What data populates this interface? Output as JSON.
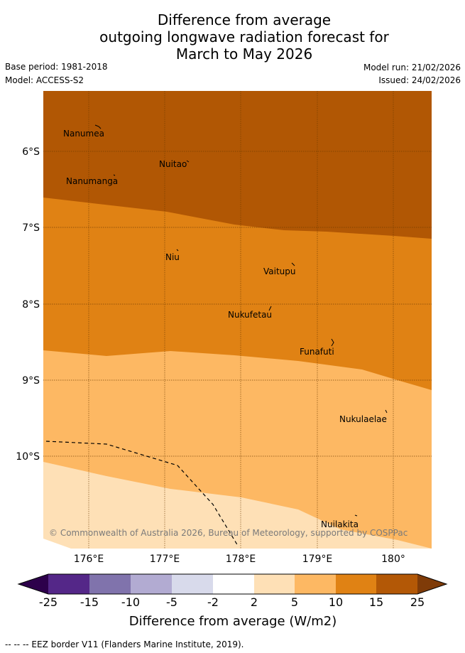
{
  "title": {
    "line1": "Difference from average",
    "line2": "outgoing longwave radiation forecast for",
    "line3": "March to May 2026"
  },
  "meta": {
    "base_period": "Base period: 1981-2018",
    "model": "Model: ACCESS-S2",
    "model_run": "Model run: 21/02/2026",
    "issued": "Issued: 24/02/2026"
  },
  "map": {
    "lat_labels": [
      "6°S",
      "7°S",
      "8°S",
      "9°S",
      "10°S"
    ],
    "lon_labels": [
      "176°E",
      "177°E",
      "178°E",
      "179°E",
      "180°"
    ],
    "places": [
      "Nanumea",
      "Nuitao",
      "Nanumanga",
      "Niu",
      "Vaitupu",
      "Nukufetau",
      "Funafuti",
      "Nukulaelae",
      "Nuilakita"
    ],
    "copyright": "© Commonwealth of Australia 2026, Bureau of Meteorology, supported by COSPPac",
    "colors": {
      "band_15_25": "#b15704",
      "band_10_15": "#e08214",
      "band_5_10": "#fdb863",
      "band_2_5": "#fee0b6"
    }
  },
  "legend": {
    "title": "Difference from average (W/m2)",
    "ticks": [
      "-25",
      "-15",
      "-10",
      "-5",
      "-2",
      "2",
      "5",
      "10",
      "15",
      "25"
    ],
    "colors": [
      "#542788",
      "#8073ac",
      "#b2abd2",
      "#d8daeb",
      "#ffffff",
      "#fee0b6",
      "#fdb863",
      "#e08214",
      "#b35806"
    ],
    "low_extend_color": "#2d004b",
    "high_extend_color": "#7f3b08"
  },
  "footnote": "--  --  -- EEZ border V11 (Flanders Marine Institute, 2019)."
}
